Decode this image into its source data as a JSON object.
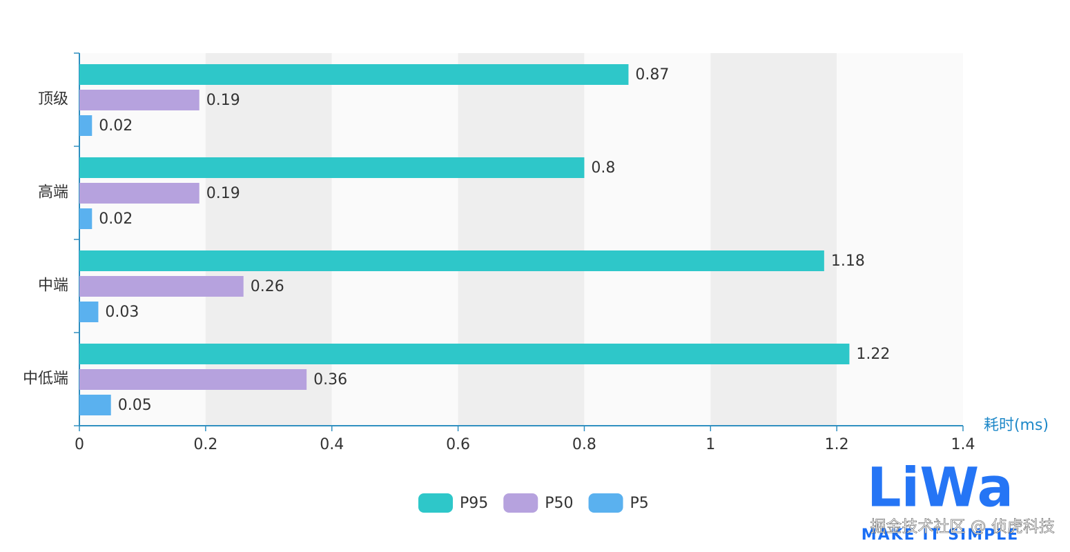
{
  "chart_data": {
    "type": "bar",
    "orientation": "horizontal",
    "categories": [
      "顶级",
      "高端",
      "中端",
      "中低端"
    ],
    "series": [
      {
        "name": "P95",
        "color": "#2ec7c9",
        "values": [
          0.87,
          0.8,
          1.18,
          1.22
        ]
      },
      {
        "name": "P50",
        "color": "#b6a2de",
        "values": [
          0.19,
          0.19,
          0.26,
          0.36
        ]
      },
      {
        "name": "P5",
        "color": "#5ab1ef",
        "values": [
          0.02,
          0.02,
          0.03,
          0.05
        ]
      }
    ],
    "xlabel": "耗时(ms)",
    "xlim": [
      0,
      1.4
    ],
    "xticks": [
      0,
      0.2,
      0.4,
      0.6,
      0.8,
      1,
      1.2,
      1.4
    ],
    "split_area": true,
    "legend": "bottom",
    "logo": {
      "title": "LiWa",
      "slogan": "MAKE IT SIMPLE"
    },
    "watermark": "掘金技术社区 @ 侦虎科技"
  }
}
